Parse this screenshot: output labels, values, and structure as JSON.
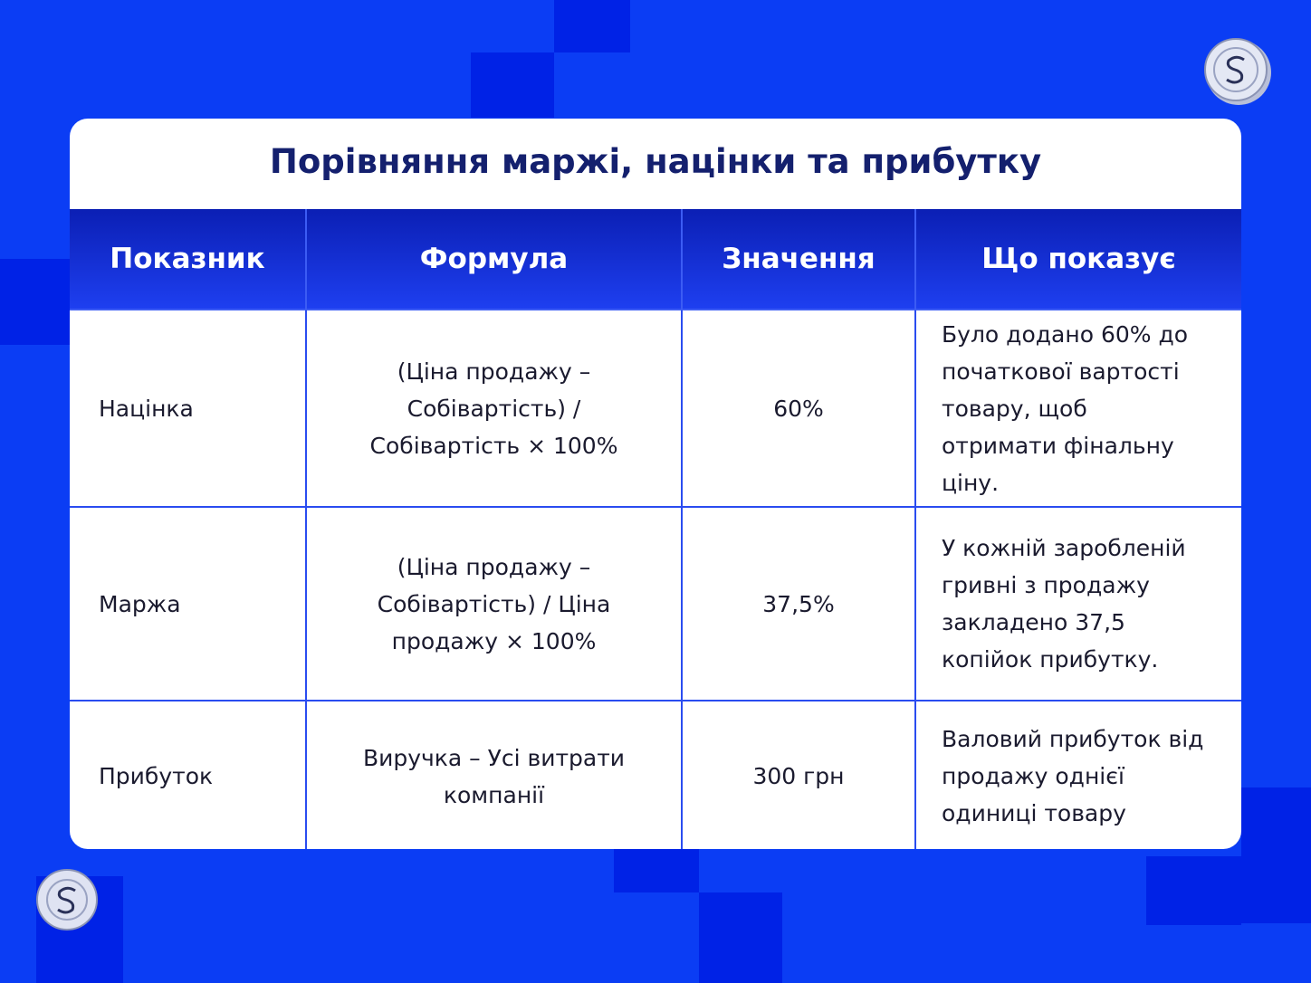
{
  "title": "Порівняння маржі, націнки та прибутку",
  "table": {
    "header": [
      "Показник",
      "Формула",
      "Значення",
      "Що показує"
    ],
    "rows": [
      [
        "Націнка",
        "(Ціна продажу – Собівартість) / Собівартість × 100%",
        "60%",
        "Було додано 60% до початкової вартості товару, щоб отримати фінальну ціну."
      ],
      [
        "Маржа",
        "(Ціна продажу – Собівартість) / Ціна продажу × 100%",
        "37,5%",
        "У кожній заробленій гривні з продажу закладено 37,5 копійок прибутку."
      ],
      [
        "Прибуток",
        "Виручка – Усі витрати компанії",
        "300 грн",
        "Валовий прибуток від продажу однієї одиниці товару"
      ]
    ]
  }
}
